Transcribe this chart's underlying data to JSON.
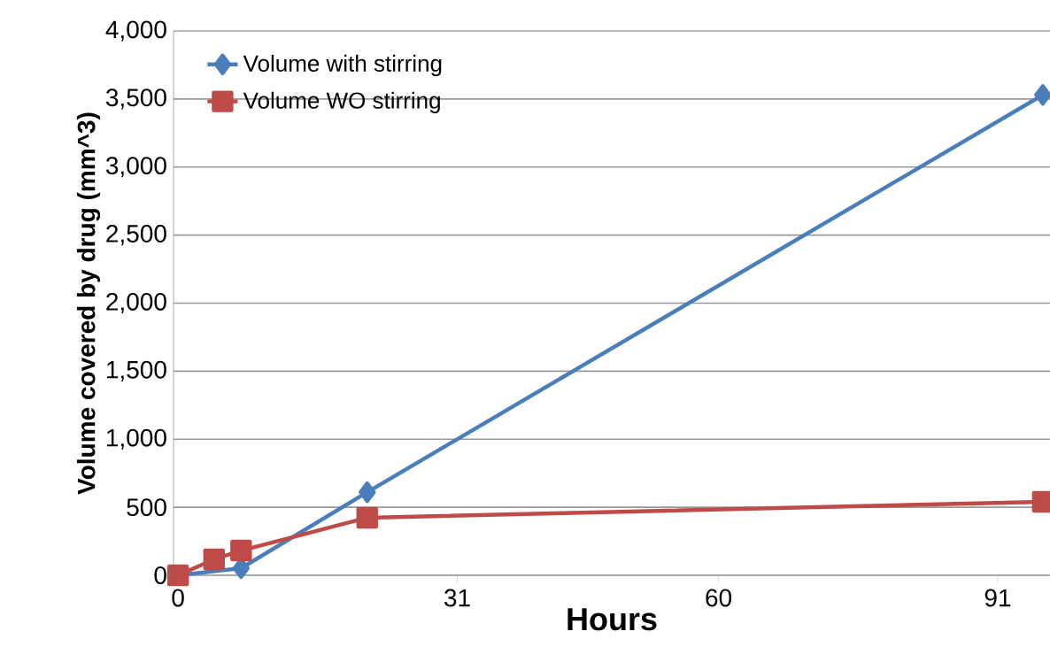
{
  "chart_data": {
    "type": "line",
    "xlabel": "Hours",
    "ylabel": "Volume covered by drug (mm^3)",
    "x": [
      0,
      4,
      7,
      21,
      96
    ],
    "series": [
      {
        "name": "Volume with stirring",
        "color": "#4a7ebb",
        "marker": "diamond",
        "values": [
          0,
          null,
          52,
          611,
          3530
        ]
      },
      {
        "name": "Volume WO stirring",
        "color": "#be4b48",
        "marker": "square",
        "values": [
          0,
          117,
          182,
          423,
          540
        ]
      }
    ],
    "xlim": [
      -0.5,
      96.8
    ],
    "xticks": [
      0,
      31,
      60,
      91
    ],
    "ylim": [
      0,
      4000
    ],
    "yticks": [
      0,
      500,
      {
        "value": 1000,
        "label": "1,000"
      },
      {
        "value": 1500,
        "label": "1,500"
      },
      {
        "value": 2000,
        "label": "2,000"
      },
      {
        "value": 2500,
        "label": "2,500"
      },
      {
        "value": 3000,
        "label": "3,000"
      },
      {
        "value": 3500,
        "label": "3,500"
      },
      {
        "value": 4000,
        "label": "4,000"
      }
    ],
    "grid": "y",
    "legend": "top left",
    "line_style": "solid"
  }
}
